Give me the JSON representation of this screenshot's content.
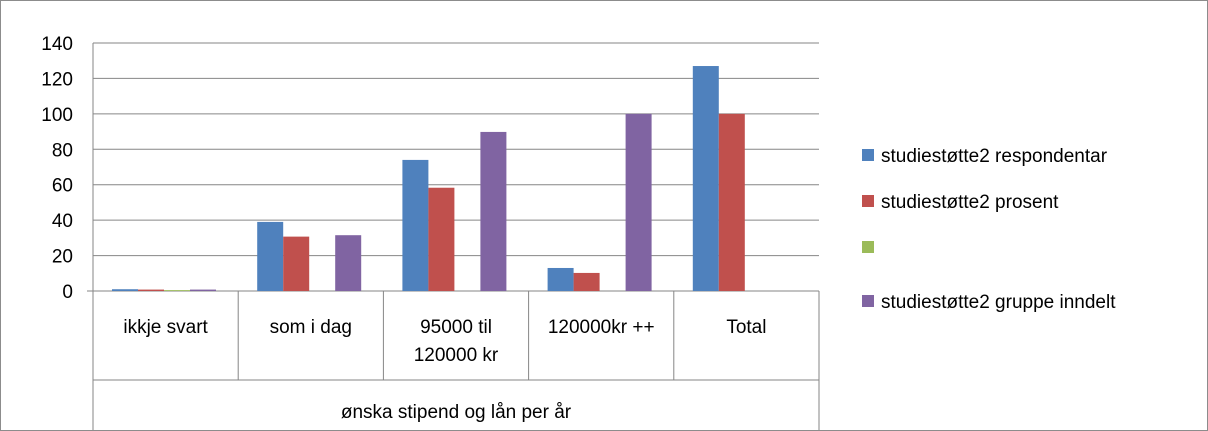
{
  "chart_data": {
    "type": "bar",
    "categories": [
      "ikkje svart",
      "som i dag",
      "95000 til 120000 kr",
      "120000kr ++",
      "Total"
    ],
    "category_lines": [
      [
        "ikkje svart"
      ],
      [
        "som i dag"
      ],
      [
        "95000 til",
        "120000 kr"
      ],
      [
        "120000kr ++"
      ],
      [
        "Total"
      ]
    ],
    "series": [
      {
        "name": "studiestøtte2 respondentar",
        "color": "#4f81bd",
        "values": [
          1,
          39,
          74,
          13,
          127
        ]
      },
      {
        "name": "studiestøtte2 prosent",
        "color": "#c0504d",
        "values": [
          0.8,
          30.7,
          58.3,
          10.2,
          100
        ]
      },
      {
        "name": "",
        "color": "#9bbb59",
        "values": [
          0.5,
          null,
          null,
          null,
          null
        ]
      },
      {
        "name": "studiestøtte2 gruppe inndelt",
        "color": "#8064a2",
        "values": [
          0.8,
          31.5,
          89.8,
          100,
          null
        ]
      }
    ],
    "xlabel": "ønska stipend og lån per år",
    "ylabel": "",
    "ylim": [
      0,
      140
    ],
    "yticks": [
      0,
      20,
      40,
      60,
      80,
      100,
      120,
      140
    ],
    "grid": true,
    "legend": "right"
  }
}
